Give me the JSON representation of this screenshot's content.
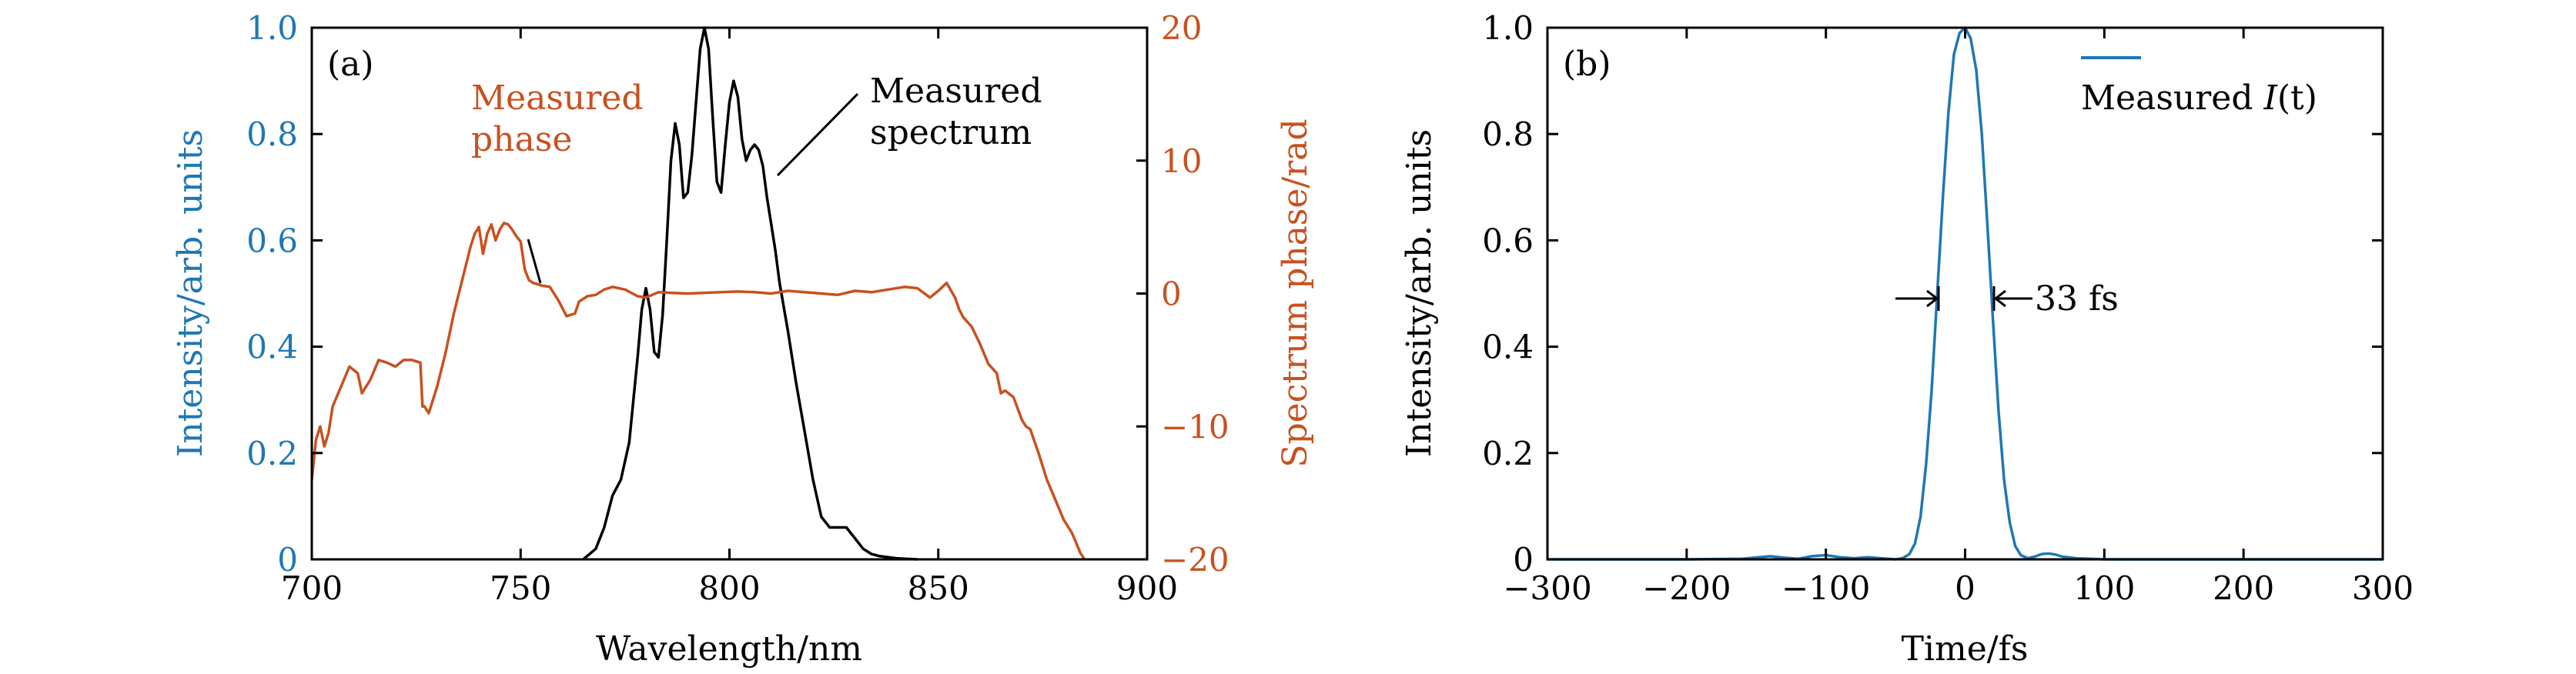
{
  "colors": {
    "intensity": "#1f77b4",
    "phase": "#c8511f",
    "spectrum": "#000000"
  },
  "chart_data": [
    {
      "type": "line",
      "panel_label": "(a)",
      "xlabel": "Wavelength/nm",
      "ylabel": "Intensity/arb. units",
      "y2label": "Spectrum phase/rad",
      "xlim": [
        700,
        900
      ],
      "ylim": [
        0,
        1.0
      ],
      "y2lim": [
        -20,
        20
      ],
      "xticks": [
        "700",
        "750",
        "800",
        "850",
        "900"
      ],
      "yticks": [
        "0",
        "0.2",
        "0.4",
        "0.6",
        "0.8",
        "1.0"
      ],
      "y2ticks": [
        "−20",
        "−10",
        "0",
        "10",
        "20"
      ],
      "grid": false,
      "annotations": {
        "phase_line1": "Measured",
        "phase_line2": "phase",
        "spectrum_line1": "Measured",
        "spectrum_line2": "spectrum"
      },
      "series": [
        {
          "axis": "left",
          "x": [
            765,
            768,
            770,
            772,
            774,
            776,
            778,
            779,
            780,
            781,
            782,
            783,
            784,
            785,
            786,
            787,
            788,
            789,
            790,
            791,
            792,
            793,
            794,
            795,
            796,
            797,
            798,
            799,
            800,
            801,
            802,
            803,
            804,
            805,
            806,
            807,
            808,
            809,
            810,
            811,
            812,
            814,
            816,
            818,
            820,
            822,
            824,
            826,
            827,
            828,
            829,
            830,
            831,
            832,
            833,
            834,
            836,
            838,
            840,
            842,
            845
          ],
          "y": [
            0.0,
            0.02,
            0.06,
            0.12,
            0.15,
            0.22,
            0.38,
            0.47,
            0.51,
            0.47,
            0.39,
            0.38,
            0.46,
            0.6,
            0.75,
            0.82,
            0.78,
            0.68,
            0.69,
            0.76,
            0.86,
            0.96,
            1.0,
            0.96,
            0.83,
            0.71,
            0.69,
            0.78,
            0.86,
            0.9,
            0.87,
            0.79,
            0.75,
            0.77,
            0.78,
            0.77,
            0.74,
            0.68,
            0.63,
            0.58,
            0.52,
            0.43,
            0.33,
            0.24,
            0.15,
            0.08,
            0.06,
            0.06,
            0.06,
            0.06,
            0.05,
            0.04,
            0.03,
            0.02,
            0.015,
            0.01,
            0.006,
            0.004,
            0.002,
            0.001,
            0.0
          ]
        },
        {
          "axis": "right",
          "x": [
            700,
            701,
            702,
            703,
            704,
            705,
            707,
            709,
            711,
            712,
            714,
            716,
            718,
            720,
            722,
            724,
            726,
            726.5,
            727,
            728,
            730,
            732,
            734,
            736,
            738,
            739,
            740,
            741,
            742,
            743,
            744,
            745,
            746,
            747,
            748,
            749,
            750,
            751,
            752,
            753,
            755,
            757,
            759,
            761,
            763,
            764,
            766,
            768,
            770,
            772,
            775,
            778,
            780,
            783,
            786,
            790,
            794,
            798,
            802,
            806,
            810,
            814,
            818,
            822,
            826,
            830,
            834,
            838,
            842,
            845,
            848,
            850,
            852,
            854,
            855,
            856,
            858,
            860,
            862,
            864,
            865,
            866,
            868,
            870,
            871,
            872,
            874,
            876,
            878,
            880,
            882,
            884,
            885
          ],
          "y": [
            -14,
            -11,
            -10,
            -11.5,
            -10.5,
            -8.5,
            -7,
            -5.5,
            -6,
            -7.5,
            -6.5,
            -5,
            -5.2,
            -5.5,
            -5,
            -5,
            -5.2,
            -8.5,
            -8.5,
            -9,
            -7,
            -4.5,
            -1.5,
            1,
            3.5,
            4.5,
            5,
            3,
            4.5,
            5.2,
            4,
            4.8,
            5.3,
            5.2,
            4.8,
            4.3,
            3.9,
            1.8,
            1,
            0.8,
            0.6,
            0.5,
            -0.5,
            -1.7,
            -1.5,
            -0.6,
            -0.2,
            -0.1,
            0.3,
            0.5,
            0.3,
            -0.2,
            -0.3,
            0.1,
            0.05,
            0.0,
            0.05,
            0.1,
            0.15,
            0.1,
            0.0,
            0.2,
            0.1,
            0.0,
            -0.1,
            0.2,
            0.1,
            0.3,
            0.5,
            0.4,
            -0.3,
            0.2,
            0.8,
            -0.3,
            -1.2,
            -1.8,
            -2.5,
            -3.8,
            -5.3,
            -6.0,
            -7.5,
            -7.3,
            -7.8,
            -9.5,
            -10,
            -10.2,
            -12,
            -14,
            -15.5,
            -17,
            -18,
            -19.5,
            -20
          ]
        }
      ]
    },
    {
      "type": "line",
      "panel_label": "(b)",
      "xlabel": "Time/fs",
      "ylabel": "Intensity/arb. units",
      "xlim": [
        -300,
        300
      ],
      "ylim": [
        0,
        1.0
      ],
      "xticks": [
        "−300",
        "−200",
        "−100",
        "0",
        "100",
        "200",
        "300"
      ],
      "yticks": [
        "0",
        "0.2",
        "0.4",
        "0.6",
        "0.8",
        "1.0"
      ],
      "grid": false,
      "legend": {
        "position": "top-right",
        "label_prefix": "Measured ",
        "label_var": "I",
        "label_arg": "(t)"
      },
      "annotation": "33 fs",
      "series": [
        {
          "name": "Measured I(t)",
          "x": [
            -300,
            -200,
            -160,
            -140,
            -130,
            -120,
            -110,
            -100,
            -90,
            -80,
            -70,
            -60,
            -50,
            -45,
            -40,
            -36,
            -32,
            -28,
            -24,
            -20,
            -16,
            -12,
            -8,
            -4,
            0,
            4,
            8,
            12,
            16,
            20,
            24,
            28,
            32,
            36,
            40,
            45,
            50,
            55,
            60,
            65,
            70,
            80,
            100,
            150,
            200,
            300
          ],
          "y": [
            0,
            0,
            0.001,
            0.006,
            0.003,
            0.001,
            0.006,
            0.008,
            0.004,
            0.002,
            0.004,
            0.002,
            0.0,
            0.002,
            0.01,
            0.03,
            0.08,
            0.18,
            0.32,
            0.5,
            0.68,
            0.84,
            0.95,
            0.99,
            1.0,
            0.98,
            0.92,
            0.8,
            0.63,
            0.45,
            0.28,
            0.15,
            0.07,
            0.025,
            0.008,
            0.002,
            0.005,
            0.01,
            0.011,
            0.009,
            0.005,
            0.002,
            0.0,
            0.0,
            0.0,
            0.0
          ]
        }
      ]
    }
  ]
}
